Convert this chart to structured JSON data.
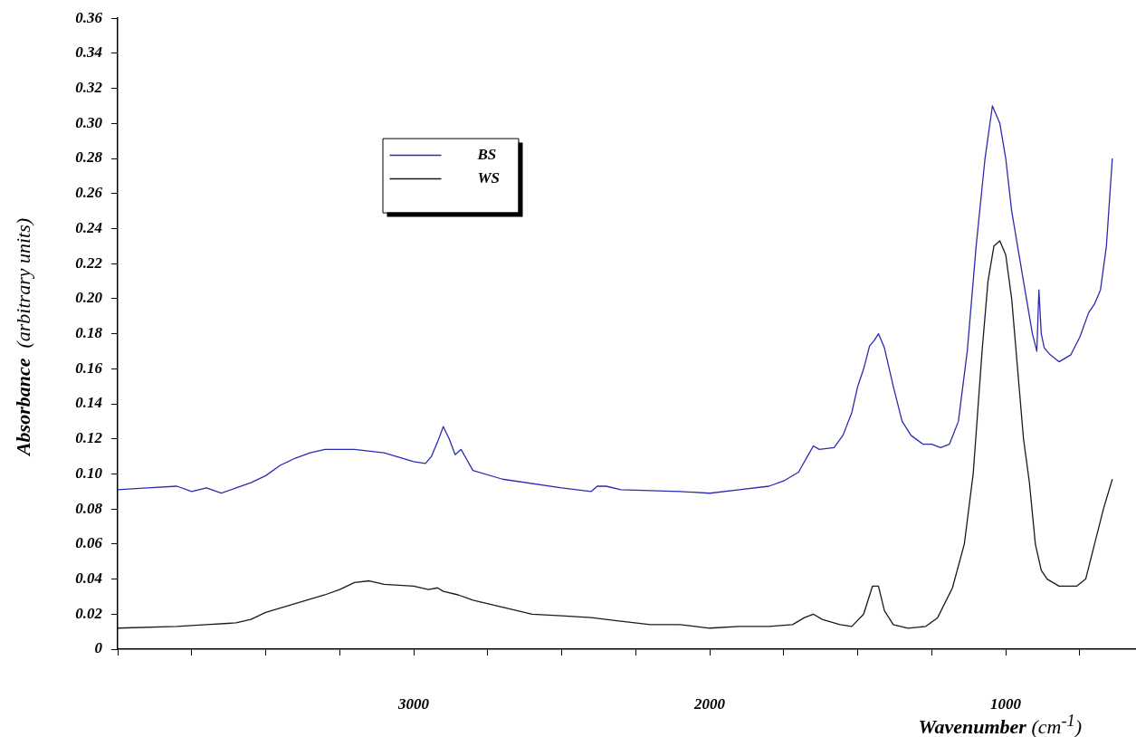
{
  "chart_data": {
    "type": "line",
    "xlabel": "Wavenumber (cm$^{-1}$)",
    "ylabel": "Absorbance  (arbitrary units)",
    "xlim": [
      4000,
      560
    ],
    "xticks": [
      {
        "value": 4000,
        "label": null
      },
      {
        "value": 3750,
        "label": null
      },
      {
        "value": 3500,
        "label": null
      },
      {
        "value": 3250,
        "label": null
      },
      3000,
      {
        "value": 2750,
        "label": null
      },
      {
        "value": 2500,
        "label": null
      },
      {
        "value": 2250,
        "label": null
      },
      2000,
      {
        "value": 1750,
        "label": null
      },
      {
        "value": 1500,
        "label": null
      },
      {
        "value": 1250,
        "label": null
      },
      1000,
      {
        "value": 750,
        "label": null
      }
    ],
    "ylim": [
      0,
      0.36
    ],
    "yticks": [
      0,
      0.02,
      0.04,
      0.06,
      0.08,
      {
        "value": 0.1,
        "label": "0.10"
      },
      0.12,
      0.14,
      0.16,
      0.18,
      {
        "value": 0.2,
        "label": "0.20"
      },
      0.22,
      0.24,
      0.26,
      0.28,
      {
        "value": 0.3,
        "label": "0.30"
      },
      0.32,
      0.34,
      0.36
    ],
    "grid": false,
    "legend": "top left",
    "marker": "none",
    "line_style": "solid",
    "series": [
      {
        "name": "BS",
        "color": "#2b2bb0",
        "x": [
          4000,
          3900,
          3800,
          3750,
          3700,
          3650,
          3600,
          3550,
          3500,
          3450,
          3400,
          3350,
          3300,
          3200,
          3100,
          3000,
          2960,
          2940,
          2920,
          2900,
          2880,
          2860,
          2840,
          2820,
          2800,
          2700,
          2500,
          2400,
          2380,
          2350,
          2300,
          2100,
          2000,
          1900,
          1800,
          1750,
          1700,
          1670,
          1650,
          1630,
          1580,
          1550,
          1520,
          1500,
          1480,
          1460,
          1445,
          1430,
          1410,
          1380,
          1350,
          1320,
          1280,
          1250,
          1220,
          1190,
          1160,
          1130,
          1100,
          1070,
          1045,
          1020,
          1000,
          980,
          960,
          940,
          910,
          895,
          888,
          880,
          870,
          850,
          820,
          780,
          750,
          720,
          700,
          680,
          660,
          640
        ],
        "values": [
          0.091,
          0.092,
          0.093,
          0.09,
          0.092,
          0.089,
          0.092,
          0.095,
          0.099,
          0.105,
          0.109,
          0.112,
          0.114,
          0.114,
          0.112,
          0.107,
          0.106,
          0.11,
          0.118,
          0.127,
          0.12,
          0.111,
          0.114,
          0.108,
          0.102,
          0.097,
          0.092,
          0.09,
          0.093,
          0.093,
          0.091,
          0.09,
          0.089,
          0.091,
          0.093,
          0.096,
          0.101,
          0.11,
          0.116,
          0.114,
          0.115,
          0.122,
          0.135,
          0.15,
          0.16,
          0.173,
          0.176,
          0.18,
          0.172,
          0.15,
          0.13,
          0.122,
          0.117,
          0.117,
          0.115,
          0.117,
          0.13,
          0.17,
          0.23,
          0.28,
          0.31,
          0.3,
          0.28,
          0.25,
          0.23,
          0.21,
          0.18,
          0.17,
          0.205,
          0.18,
          0.172,
          0.168,
          0.164,
          0.168,
          0.178,
          0.192,
          0.197,
          0.205,
          0.23,
          0.28
        ]
      },
      {
        "name": "WS",
        "color": "#1a1a1a",
        "x": [
          4000,
          3800,
          3700,
          3600,
          3550,
          3500,
          3400,
          3300,
          3250,
          3200,
          3150,
          3100,
          3000,
          2950,
          2920,
          2900,
          2850,
          2800,
          2700,
          2600,
          2500,
          2400,
          2300,
          2200,
          2100,
          2000,
          1900,
          1800,
          1720,
          1680,
          1650,
          1620,
          1560,
          1520,
          1480,
          1450,
          1430,
          1410,
          1380,
          1330,
          1270,
          1230,
          1180,
          1140,
          1110,
          1080,
          1060,
          1040,
          1020,
          1000,
          980,
          960,
          940,
          920,
          900,
          880,
          860,
          820,
          760,
          730,
          700,
          670,
          640
        ],
        "values": [
          0.012,
          0.013,
          0.014,
          0.015,
          0.017,
          0.021,
          0.026,
          0.031,
          0.034,
          0.038,
          0.039,
          0.037,
          0.036,
          0.034,
          0.035,
          0.033,
          0.031,
          0.028,
          0.024,
          0.02,
          0.019,
          0.018,
          0.016,
          0.014,
          0.014,
          0.012,
          0.013,
          0.013,
          0.014,
          0.018,
          0.02,
          0.017,
          0.014,
          0.013,
          0.02,
          0.036,
          0.036,
          0.022,
          0.014,
          0.012,
          0.013,
          0.018,
          0.035,
          0.06,
          0.1,
          0.17,
          0.21,
          0.23,
          0.233,
          0.225,
          0.2,
          0.16,
          0.12,
          0.095,
          0.06,
          0.045,
          0.04,
          0.036,
          0.036,
          0.04,
          0.06,
          0.08,
          0.097
        ]
      }
    ]
  }
}
